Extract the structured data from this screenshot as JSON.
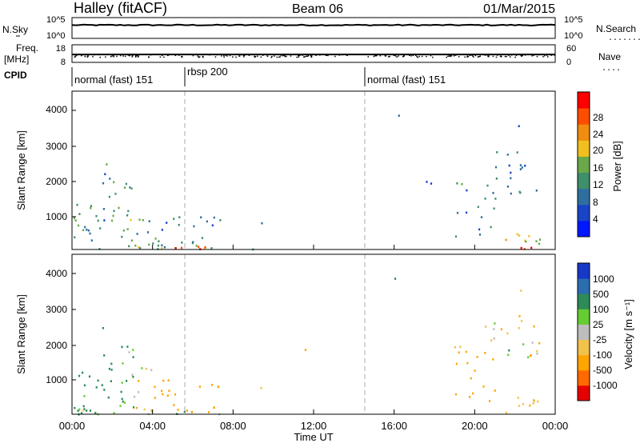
{
  "header": {
    "station": "Halley (fitACF)",
    "beam": "Beam 06",
    "date": "01/Mar/2015"
  },
  "strips": {
    "nsky_label": "N.Sky",
    "nsky_tick_high": "10^5",
    "nsky_tick_low": "10^0",
    "nsearch_label": "N.Search",
    "nsearch_tick_high": "10^5",
    "nsearch_tick_low": "10^0",
    "freq_label": "Freq.",
    "freq_unit": "[MHz]",
    "freq_tick_high": "18",
    "freq_tick_low": "8",
    "nave_label": "Nave",
    "nave_tick_high": "60",
    "nave_tick_low": "0",
    "cpid_label": "CPID",
    "modes": [
      "normal (fast) 151",
      "rbsp 200",
      "normal (fast) 151"
    ]
  },
  "power_panel": {
    "ylabel": "Slant Range [km]",
    "cbar_label": "Power [dB]",
    "cbar_ticks": [
      "28",
      "24",
      "20",
      "16",
      "12",
      "8",
      "4"
    ]
  },
  "velocity_panel": {
    "ylabel": "Slant Range [km]",
    "cbar_label": "Velocity [m s⁻¹]",
    "cbar_ticks": [
      "1000",
      "500",
      "100",
      "25",
      "-25",
      "-100",
      "-500",
      "-1000"
    ]
  },
  "xaxis": {
    "label": "Time UT",
    "ticks": [
      "00:00",
      "04:00",
      "08:00",
      "12:00",
      "16:00",
      "20:00",
      "00:00"
    ]
  },
  "colors": {
    "power_scale": [
      "#0018ff",
      "#1a44c8",
      "#2f6fa0",
      "#3f8f6a",
      "#6aa84a",
      "#f0c020",
      "#f08c10",
      "#ff4d00",
      "#ff0000"
    ],
    "velocity_scale": [
      "#e60000",
      "#ff6a00",
      "#ffa500",
      "#f2c24a",
      "#bdbdbd",
      "#66cc33",
      "#2e8b57",
      "#2a6eb0",
      "#1838c8"
    ],
    "mode_divider": "#aaaaaa"
  },
  "chart_data": [
    {
      "type": "line",
      "title": "N.Sky / N.Search",
      "x": [
        0,
        4,
        8,
        12,
        16,
        20,
        24
      ],
      "series": [
        {
          "values": [
            3.2,
            3.2,
            3.2,
            3.2,
            3.2,
            3.2,
            3.2
          ]
        }
      ],
      "ylim": [
        0,
        5
      ],
      "ylabel": "N.Sky"
    },
    {
      "type": "scatter",
      "title": "Freq. / Nave",
      "x": [
        0,
        4,
        8,
        12,
        16,
        20,
        24
      ],
      "series": [
        {
          "values": [
            12,
            12,
            12,
            12,
            12,
            12,
            12
          ]
        }
      ],
      "ylim": [
        8,
        18
      ],
      "ylabel": "Freq. [MHz]"
    },
    {
      "type": "heatmap",
      "title": "Power",
      "xlabel": "Time UT",
      "ylabel": "Slant Range [km]",
      "xlim": [
        0,
        24
      ],
      "ylim": [
        180,
        4500
      ],
      "colorbar": {
        "label": "Power [dB]",
        "range": [
          0,
          30
        ]
      },
      "mode_changes": [
        5.6,
        14.6
      ],
      "patches": [
        {
          "t0": 0.0,
          "t1": 1.3,
          "r0": 200,
          "r1": 1450,
          "density": 0.55,
          "value": 11
        },
        {
          "t0": 1.3,
          "t1": 2.0,
          "r0": 500,
          "r1": 2600,
          "density": 0.35,
          "value": 10
        },
        {
          "t0": 2.0,
          "t1": 3.1,
          "r0": 250,
          "r1": 2100,
          "density": 0.45,
          "value": 14
        },
        {
          "t0": 3.1,
          "t1": 4.4,
          "r0": 300,
          "r1": 1500,
          "density": 0.35,
          "value": 12
        },
        {
          "t0": 4.4,
          "t1": 5.6,
          "r0": 220,
          "r1": 1200,
          "density": 0.4,
          "value": 10
        },
        {
          "t0": 0.0,
          "t1": 7.7,
          "r0": 180,
          "r1": 320,
          "density": 0.6,
          "value": 16
        },
        {
          "t0": 4.5,
          "t1": 7.6,
          "r0": 180,
          "r1": 280,
          "density": 0.9,
          "value": 27
        },
        {
          "t0": 5.6,
          "t1": 7.4,
          "r0": 250,
          "r1": 1150,
          "density": 0.3,
          "value": 9
        },
        {
          "t0": 8.5,
          "t1": 10.0,
          "r0": 180,
          "r1": 350,
          "density": 0.3,
          "value": 16
        },
        {
          "t0": 9.0,
          "t1": 9.5,
          "r0": 900,
          "r1": 1100,
          "density": 0.3,
          "value": 7
        },
        {
          "t0": 16.0,
          "t1": 16.3,
          "r0": 3400,
          "r1": 3900,
          "density": 0.4,
          "value": 6
        },
        {
          "t0": 17.4,
          "t1": 18.4,
          "r0": 2000,
          "r1": 2300,
          "density": 0.3,
          "value": 9
        },
        {
          "t0": 18.5,
          "t1": 19.6,
          "r0": 1950,
          "r1": 2100,
          "density": 0.6,
          "value": 12
        },
        {
          "t0": 19.0,
          "t1": 21.0,
          "r0": 500,
          "r1": 1900,
          "density": 0.25,
          "value": 9
        },
        {
          "t0": 20.5,
          "t1": 23.2,
          "r0": 1700,
          "r1": 2900,
          "density": 0.3,
          "value": 8
        },
        {
          "t0": 21.5,
          "t1": 23.3,
          "r0": 180,
          "r1": 700,
          "density": 0.55,
          "value": 18
        },
        {
          "t0": 21.7,
          "t1": 23.0,
          "r0": 180,
          "r1": 300,
          "density": 0.9,
          "value": 26
        },
        {
          "t0": 22.0,
          "t1": 22.6,
          "r0": 3400,
          "r1": 4000,
          "density": 0.2,
          "value": 7
        }
      ]
    },
    {
      "type": "heatmap",
      "title": "Velocity",
      "xlabel": "Time UT",
      "ylabel": "Slant Range [km]",
      "xlim": [
        0,
        24
      ],
      "ylim": [
        180,
        4500
      ],
      "colorbar": {
        "label": "Velocity [m s-1]",
        "range": [
          -1000,
          1000
        ]
      },
      "mode_changes": [
        5.6,
        14.6
      ],
      "patches": [
        {
          "t0": 0.0,
          "t1": 1.3,
          "r0": 200,
          "r1": 1450,
          "density": 0.55,
          "value": 200
        },
        {
          "t0": 1.3,
          "t1": 2.0,
          "r0": 500,
          "r1": 2600,
          "density": 0.35,
          "value": 300
        },
        {
          "t0": 2.0,
          "t1": 3.1,
          "r0": 250,
          "r1": 2100,
          "density": 0.45,
          "value": 150
        },
        {
          "t0": 3.1,
          "t1": 4.4,
          "r0": 300,
          "r1": 1500,
          "density": 0.35,
          "value": -100
        },
        {
          "t0": 4.4,
          "t1": 5.6,
          "r0": 220,
          "r1": 1200,
          "density": 0.4,
          "value": -300
        },
        {
          "t0": 0.0,
          "t1": 7.7,
          "r0": 180,
          "r1": 320,
          "density": 0.5,
          "value": 20
        },
        {
          "t0": 5.6,
          "t1": 7.4,
          "r0": 250,
          "r1": 1150,
          "density": 0.3,
          "value": -200
        },
        {
          "t0": 9.0,
          "t1": 10.0,
          "r0": 900,
          "r1": 1100,
          "density": 0.3,
          "value": -200
        },
        {
          "t0": 11.5,
          "t1": 13.0,
          "r0": 1850,
          "r1": 2050,
          "density": 0.2,
          "value": -300
        },
        {
          "t0": 16.0,
          "t1": 16.3,
          "r0": 3400,
          "r1": 3900,
          "density": 0.4,
          "value": 0
        },
        {
          "t0": 18.5,
          "t1": 19.6,
          "r0": 1950,
          "r1": 2100,
          "density": 0.6,
          "value": -60
        },
        {
          "t0": 19.0,
          "t1": 21.0,
          "r0": 500,
          "r1": 1900,
          "density": 0.3,
          "value": -300
        },
        {
          "t0": 20.5,
          "t1": 23.2,
          "r0": 1700,
          "r1": 2900,
          "density": 0.35,
          "value": 0
        },
        {
          "t0": 21.5,
          "t1": 23.3,
          "r0": 180,
          "r1": 700,
          "density": 0.55,
          "value": -150
        },
        {
          "t0": 22.0,
          "t1": 22.6,
          "r0": 3400,
          "r1": 4000,
          "density": 0.2,
          "value": 0
        }
      ]
    }
  ]
}
